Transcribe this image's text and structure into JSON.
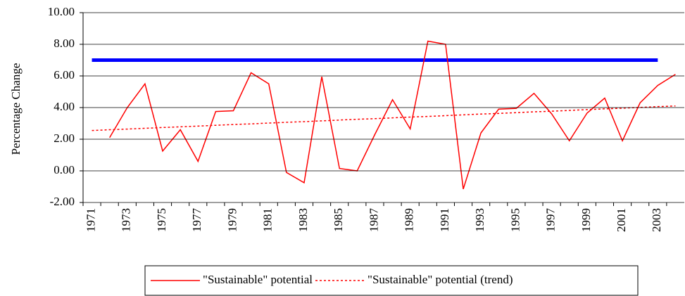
{
  "chart_data": {
    "type": "line",
    "y_label": "Percentage Change",
    "categories": [
      "1971",
      null,
      "1973",
      null,
      "1975",
      null,
      "1977",
      null,
      "1979",
      null,
      "1981",
      null,
      "1983",
      null,
      "1985",
      null,
      "1987",
      null,
      "1989",
      null,
      "1991",
      null,
      "1993",
      null,
      "1995",
      null,
      "1997",
      null,
      "1999",
      null,
      "2001",
      null,
      "2003",
      null
    ],
    "series": [
      {
        "color": "#0000ff",
        "dash": false,
        "width": 5,
        "values": [
          7,
          7,
          7,
          7,
          7,
          7,
          7,
          7,
          7,
          7,
          7,
          7,
          7,
          7,
          7,
          7,
          7,
          7,
          7,
          7,
          7,
          7,
          7,
          7,
          7,
          7,
          7,
          7,
          7,
          7,
          7,
          7,
          7,
          null
        ]
      },
      {
        "name": "\"Sustainable\" potential",
        "color": "#ff0000",
        "dash": false,
        "width": 1.5,
        "values": [
          null,
          2.1,
          4.0,
          5.5,
          1.25,
          2.6,
          0.6,
          3.75,
          3.8,
          6.2,
          5.5,
          -0.1,
          -0.75,
          5.95,
          0.15,
          0.0,
          2.3,
          4.5,
          2.65,
          8.2,
          8.0,
          -1.15,
          2.4,
          3.9,
          3.95,
          4.9,
          3.6,
          1.9,
          3.65,
          4.6,
          1.9,
          4.3,
          5.4,
          6.1
        ]
      },
      {
        "name": "\"Sustainable\" potential (trend)",
        "color": "#ff0000",
        "dash": true,
        "width": 1.5,
        "values": [
          2.55,
          2.6,
          2.64,
          2.69,
          2.74,
          2.78,
          2.83,
          2.88,
          2.93,
          2.97,
          3.02,
          3.07,
          3.11,
          3.16,
          3.21,
          3.26,
          3.3,
          3.35,
          3.4,
          3.44,
          3.49,
          3.54,
          3.59,
          3.63,
          3.68,
          3.73,
          3.77,
          3.82,
          3.87,
          3.92,
          3.96,
          4.01,
          4.06,
          4.1
        ]
      }
    ],
    "ylim": [
      -2,
      10
    ],
    "yticks": [
      {
        "value": -2,
        "label": "-2.00"
      },
      {
        "value": 0,
        "label": "0.00"
      },
      {
        "value": 2,
        "label": "2.00"
      },
      {
        "value": 4,
        "label": "4.00"
      },
      {
        "value": 6,
        "label": "6.00"
      },
      {
        "value": 8,
        "label": "8.00"
      },
      {
        "value": 10,
        "label": "10.00"
      }
    ],
    "grid": true,
    "legend": "bottom"
  }
}
